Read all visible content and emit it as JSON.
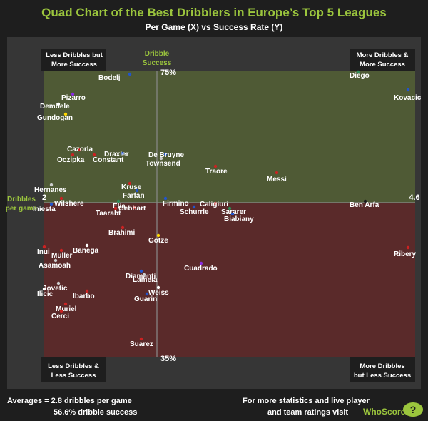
{
  "header": {
    "title": "Quad Chart of the Best Dribblers in Europe’s Top 5 Leagues",
    "subtitle": "Per Game (X) vs Success Rate (Y)"
  },
  "axes": {
    "x_min_label": "2",
    "x_max_label": "4.6",
    "y_max_label": "75%",
    "y_min_label": "35%",
    "x_axis_name": [
      "Dribbles",
      "per game"
    ],
    "y_axis_name": [
      "Dribble",
      "Success"
    ]
  },
  "quadrants": {
    "top_left": [
      "Less Dribbles but",
      "More Success"
    ],
    "top_right": [
      "More Dribbles &",
      "More Success"
    ],
    "bottom_left": [
      "Less Dribbles &",
      "Less Success"
    ],
    "bottom_right": [
      "More Dribbles",
      "but Less Success"
    ]
  },
  "footer": {
    "averages_line1": "Averages = 2.8 dribbles per game",
    "averages_line2": "56.6% dribble success",
    "promo_line1": "For more statistics and live player",
    "promo_line2": "and team ratings visit",
    "brand": "WhoScored",
    "brand_mark": "?"
  },
  "colors": {
    "background": "#1e1e1e",
    "plot_bg": "#363636",
    "upper_fill": "#4f5a35",
    "lower_fill": "#5a2a2a",
    "accent_green": "#9bc53d"
  },
  "chart_data": {
    "type": "scatter",
    "xlabel": "Dribbles per game",
    "ylabel": "Dribble Success",
    "xlim": [
      2,
      4.6
    ],
    "ylim": [
      35,
      75
    ],
    "averages": {
      "x": 2.8,
      "y": 56.6
    },
    "points": [
      {
        "name": "Bodelj",
        "x": 2.6,
        "y": 74.6,
        "color": "#2255cc"
      },
      {
        "name": "Diego",
        "x": 4.2,
        "y": 74.9,
        "color": "#2e8b57"
      },
      {
        "name": "Kovacic",
        "x": 4.55,
        "y": 72.4,
        "color": "#2255cc"
      },
      {
        "name": "Pizarro",
        "x": 2.2,
        "y": 71.8,
        "color": "#8a2be2"
      },
      {
        "name": "Dembele",
        "x": 2.1,
        "y": 70.4,
        "color": "#ffffff"
      },
      {
        "name": "Gundogan",
        "x": 2.15,
        "y": 69.0,
        "color": "#ffd700"
      },
      {
        "name": "Cazorla",
        "x": 2.25,
        "y": 64.0,
        "color": "#cc2222"
      },
      {
        "name": "Oczipka",
        "x": 2.2,
        "y": 63.3,
        "color": "#cc2222"
      },
      {
        "name": "Constant",
        "x": 2.35,
        "y": 63.3,
        "color": "#cc2222"
      },
      {
        "name": "Draxler",
        "x": 2.55,
        "y": 63.5,
        "color": "#2255cc"
      },
      {
        "name": "De Bruyne",
        "x": 2.85,
        "y": 63.4,
        "color": "#2255cc"
      },
      {
        "name": "Townsend",
        "x": 2.82,
        "y": 62.8,
        "color": "#cccccc"
      },
      {
        "name": "Traore",
        "x": 3.2,
        "y": 61.7,
        "color": "#cc2222"
      },
      {
        "name": "Messi",
        "x": 3.63,
        "y": 60.8,
        "color": "#cc2222"
      },
      {
        "name": "Hernanes",
        "x": 2.05,
        "y": 59.1,
        "color": "#cccccc"
      },
      {
        "name": "Kruse",
        "x": 2.6,
        "y": 59.3,
        "color": "#cc2222"
      },
      {
        "name": "Farfan",
        "x": 2.65,
        "y": 58.3,
        "color": "#2255cc"
      },
      {
        "name": "Wilshere",
        "x": 2.12,
        "y": 57.2,
        "color": "#cc2222"
      },
      {
        "name": "Iniesta",
        "x": 2.05,
        "y": 56.4,
        "color": "#2255cc"
      },
      {
        "name": "Elia",
        "x": 2.52,
        "y": 56.8,
        "color": "#2e8b57"
      },
      {
        "name": "Firmino",
        "x": 2.85,
        "y": 57.2,
        "color": "#2255cc"
      },
      {
        "name": "Taarabt",
        "x": 2.5,
        "y": 55.8,
        "color": "#cc2222"
      },
      {
        "name": "Gebhart",
        "x": 2.63,
        "y": 55.9,
        "color": "#cc2222"
      },
      {
        "name": "Caligiuri",
        "x": 3.2,
        "y": 56.5,
        "color": "#cc2222"
      },
      {
        "name": "Schurrle",
        "x": 3.05,
        "y": 56.0,
        "color": "#2255cc"
      },
      {
        "name": "Sararer",
        "x": 3.3,
        "y": 55.8,
        "color": "#2e8b57"
      },
      {
        "name": "Biabiany",
        "x": 3.32,
        "y": 55.0,
        "color": "#2255cc"
      },
      {
        "name": "Ben Arfa",
        "x": 4.25,
        "y": 56.8,
        "color": "#1a1a1a"
      },
      {
        "name": "Brahimi",
        "x": 2.55,
        "y": 53.1,
        "color": "#cc2222"
      },
      {
        "name": "Gotze",
        "x": 2.8,
        "y": 52.0,
        "color": "#ffd700"
      },
      {
        "name": "Banega",
        "x": 2.3,
        "y": 50.6,
        "color": "#ffffff"
      },
      {
        "name": "Inui",
        "x": 2.0,
        "y": 50.4,
        "color": "#cc2222"
      },
      {
        "name": "Muller",
        "x": 2.12,
        "y": 49.9,
        "color": "#cc2222"
      },
      {
        "name": "Ribery",
        "x": 4.55,
        "y": 50.3,
        "color": "#cc2222"
      },
      {
        "name": "Asamoah",
        "x": 2.08,
        "y": 48.5,
        "color": "#cccccc"
      },
      {
        "name": "Cuadrado",
        "x": 3.1,
        "y": 48.1,
        "color": "#8a2be2"
      },
      {
        "name": "Diamanti",
        "x": 2.68,
        "y": 47.0,
        "color": "#2255cc"
      },
      {
        "name": "Lamela",
        "x": 2.7,
        "y": 46.5,
        "color": "#cccccc"
      },
      {
        "name": "Jovetic",
        "x": 2.1,
        "y": 45.3,
        "color": "#cccccc"
      },
      {
        "name": "Weiss",
        "x": 2.8,
        "y": 44.7,
        "color": "#ffffff"
      },
      {
        "name": "Ilicic",
        "x": 2.0,
        "y": 44.5,
        "color": "#ffffff"
      },
      {
        "name": "Ibarbo",
        "x": 2.3,
        "y": 44.2,
        "color": "#cc2222"
      },
      {
        "name": "Guarin",
        "x": 2.72,
        "y": 43.8,
        "color": "#2255cc"
      },
      {
        "name": "Muriel",
        "x": 2.15,
        "y": 42.4,
        "color": "#cc2222"
      },
      {
        "name": "Cerci",
        "x": 2.12,
        "y": 41.4,
        "color": "#cc2222"
      },
      {
        "name": "Suarez",
        "x": 2.68,
        "y": 37.5,
        "color": "#cc2222"
      }
    ]
  }
}
